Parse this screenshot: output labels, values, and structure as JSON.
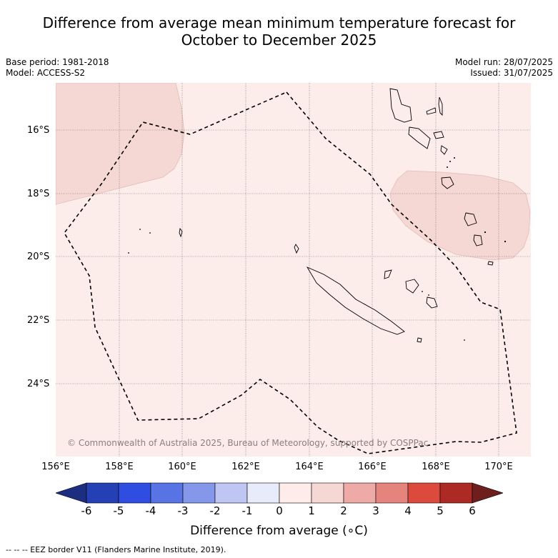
{
  "title": {
    "line1": "Difference from average mean minimum temperature forecast for",
    "line2": "October to December 2025"
  },
  "meta": {
    "base_period": "Base period: 1981-2018",
    "model": "Model: ACCESS-S2",
    "model_run": "Model run: 28/07/2025",
    "issued": "Issued: 31/07/2025"
  },
  "map": {
    "background_color": "#fcecea",
    "anomaly_color": "#f5d7d3",
    "credit": "© Commonwealth of Australia 2025, Bureau of Meteorology, supported by COSPPac",
    "lat_labels": [
      "16°S",
      "18°S",
      "20°S",
      "22°S",
      "24°S"
    ],
    "lon_labels": [
      "156°E",
      "158°E",
      "160°E",
      "162°E",
      "164°E",
      "166°E",
      "168°E",
      "170°E"
    ]
  },
  "colorbar": {
    "ticks": [
      "-6",
      "-5",
      "-4",
      "-3",
      "-2",
      "-1",
      "0",
      "1",
      "2",
      "3",
      "4",
      "5",
      "6"
    ],
    "colors": [
      "#1d2d80",
      "#2440b4",
      "#2f4de0",
      "#5874e4",
      "#8497ea",
      "#bfc6f4",
      "#e8ebfa",
      "#fdecea",
      "#f5d7d3",
      "#eeaaa6",
      "#e5847d",
      "#dc4a3d",
      "#ac2a23",
      "#6e1f1d"
    ],
    "title": "Difference from average (∘C)"
  },
  "footnote": "--  --  -- EEZ border V11 (Flanders Marine Institute, 2019)."
}
